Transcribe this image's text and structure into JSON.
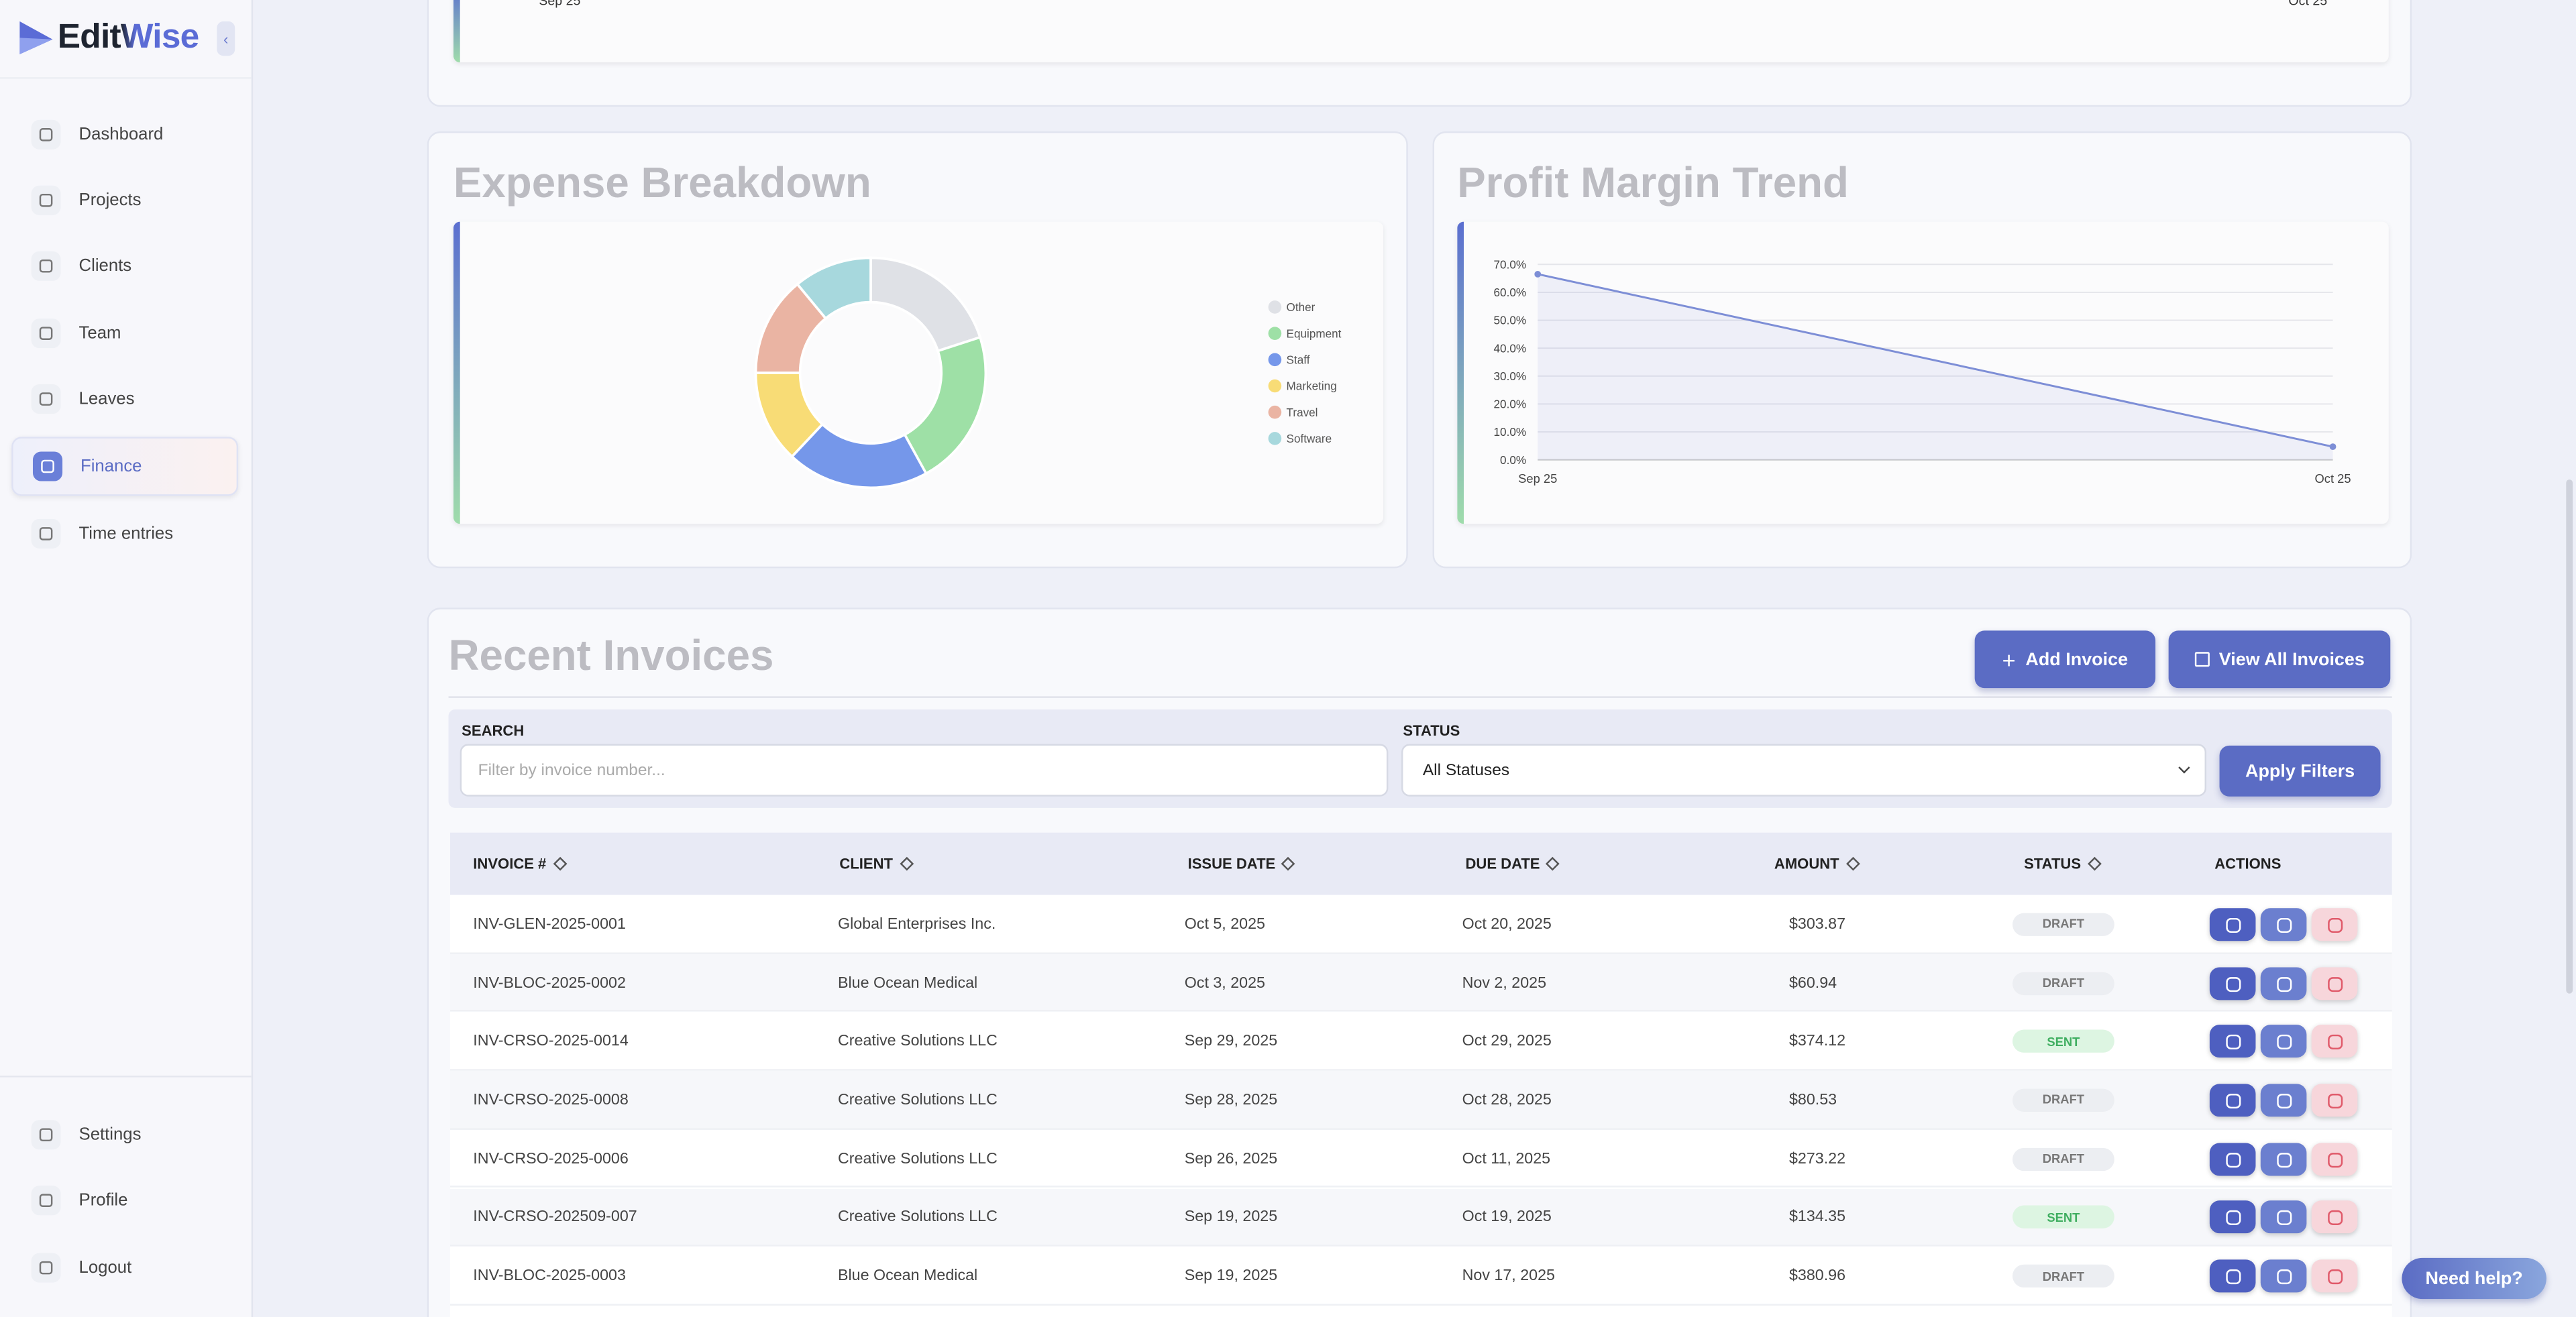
{
  "sidebar": {
    "brand": "EditWise",
    "nav": [
      "Dashboard",
      "Projects",
      "Clients",
      "Team",
      "Leaves",
      "Finance",
      "Time entries"
    ],
    "active_index": 5,
    "bottom_nav": [
      "Settings",
      "Profile",
      "Logout"
    ]
  },
  "top_chart": {
    "x_labels": [
      "Sep 25",
      "Oct 25"
    ]
  },
  "chart_data": [
    {
      "type": "pie",
      "title": "Expense Breakdown",
      "categories": [
        "Other",
        "Equipment",
        "Staff",
        "Marketing",
        "Travel",
        "Software"
      ],
      "values": [
        20,
        22,
        20,
        13,
        14,
        11
      ],
      "colors": [
        "#dfe1e6",
        "#9ee0a6",
        "#7597ea",
        "#f8dc76",
        "#eab4a3",
        "#a7d8dd"
      ],
      "donut": true
    },
    {
      "type": "line",
      "title": "Profit Margin Trend",
      "categories": [
        "Sep 25",
        "Oct 25"
      ],
      "series": [
        {
          "name": "Profit Margin",
          "color": "#7d8ed6",
          "values": [
            66.5,
            4.7
          ]
        }
      ],
      "ylim": [
        0,
        70
      ],
      "yticks": [
        {
          "value": 0,
          "label": "0.0%"
        },
        {
          "value": 10,
          "label": "10.0%"
        },
        {
          "value": 20,
          "label": "20.0%"
        },
        {
          "value": 30,
          "label": "30.0%"
        },
        {
          "value": 40,
          "label": "40.0%"
        },
        {
          "value": 50,
          "label": "50.0%"
        },
        {
          "value": 60,
          "label": "60.0%"
        },
        {
          "value": 70,
          "label": "70.0%"
        }
      ],
      "grid": true
    }
  ],
  "invoices": {
    "title": "Recent Invoices",
    "add_button": "Add Invoice",
    "view_all_button": "View All Invoices",
    "filters": {
      "search_label": "SEARCH",
      "search_placeholder": "Filter by invoice number...",
      "status_label": "STATUS",
      "status_value": "All Statuses",
      "apply": "Apply Filters"
    },
    "headers": [
      "INVOICE #",
      "CLIENT",
      "ISSUE DATE",
      "DUE DATE",
      "AMOUNT",
      "STATUS",
      "ACTIONS"
    ],
    "rows": [
      [
        "INV-GLEN-2025-0001",
        "Global Enterprises Inc.",
        "Oct 5, 2025",
        "Oct 20, 2025",
        "$303.87",
        "DRAFT"
      ],
      [
        "INV-BLOC-2025-0002",
        "Blue Ocean Medical",
        "Oct 3, 2025",
        "Nov 2, 2025",
        "$60.94",
        "DRAFT"
      ],
      [
        "INV-CRSO-2025-0014",
        "Creative Solutions LLC",
        "Sep 29, 2025",
        "Oct 29, 2025",
        "$374.12",
        "SENT"
      ],
      [
        "INV-CRSO-2025-0008",
        "Creative Solutions LLC",
        "Sep 28, 2025",
        "Oct 28, 2025",
        "$80.53",
        "DRAFT"
      ],
      [
        "INV-CRSO-2025-0006",
        "Creative Solutions LLC",
        "Sep 26, 2025",
        "Oct 11, 2025",
        "$273.22",
        "DRAFT"
      ],
      [
        "INV-CRSO-202509-007",
        "Creative Solutions LLC",
        "Sep 19, 2025",
        "Oct 19, 2025",
        "$134.35",
        "SENT"
      ],
      [
        "INV-BLOC-2025-0003",
        "Blue Ocean Medical",
        "Sep 19, 2025",
        "Nov 17, 2025",
        "$380.96",
        "DRAFT"
      ]
    ]
  },
  "help_button": "Need help?"
}
